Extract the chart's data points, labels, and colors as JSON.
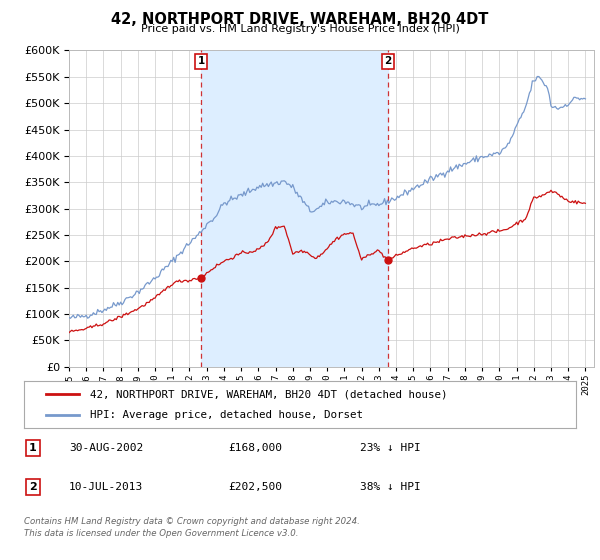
{
  "title": "42, NORTHPORT DRIVE, WAREHAM, BH20 4DT",
  "subtitle": "Price paid vs. HM Land Registry's House Price Index (HPI)",
  "ylim": [
    0,
    600000
  ],
  "yticks": [
    0,
    50000,
    100000,
    150000,
    200000,
    250000,
    300000,
    350000,
    400000,
    450000,
    500000,
    550000,
    600000
  ],
  "xlim_start": 1995.0,
  "xlim_end": 2025.5,
  "background_color": "#ffffff",
  "plot_bg_color": "#ffffff",
  "grid_color": "#cccccc",
  "hpi_color": "#7799cc",
  "hpi_fill_color": "#ddeeff",
  "price_color": "#cc1111",
  "marker1_year": 2002.667,
  "marker1_price": 168000,
  "marker1_label": "1",
  "marker1_date": "30-AUG-2002",
  "marker1_amount": "£168,000",
  "marker1_pct": "23% ↓ HPI",
  "marker2_year": 2013.528,
  "marker2_price": 202500,
  "marker2_label": "2",
  "marker2_date": "10-JUL-2013",
  "marker2_amount": "£202,500",
  "marker2_pct": "38% ↓ HPI",
  "legend_line1": "42, NORTHPORT DRIVE, WAREHAM, BH20 4DT (detached house)",
  "legend_line2": "HPI: Average price, detached house, Dorset",
  "footer1": "Contains HM Land Registry data © Crown copyright and database right 2024.",
  "footer2": "This data is licensed under the Open Government Licence v3.0."
}
